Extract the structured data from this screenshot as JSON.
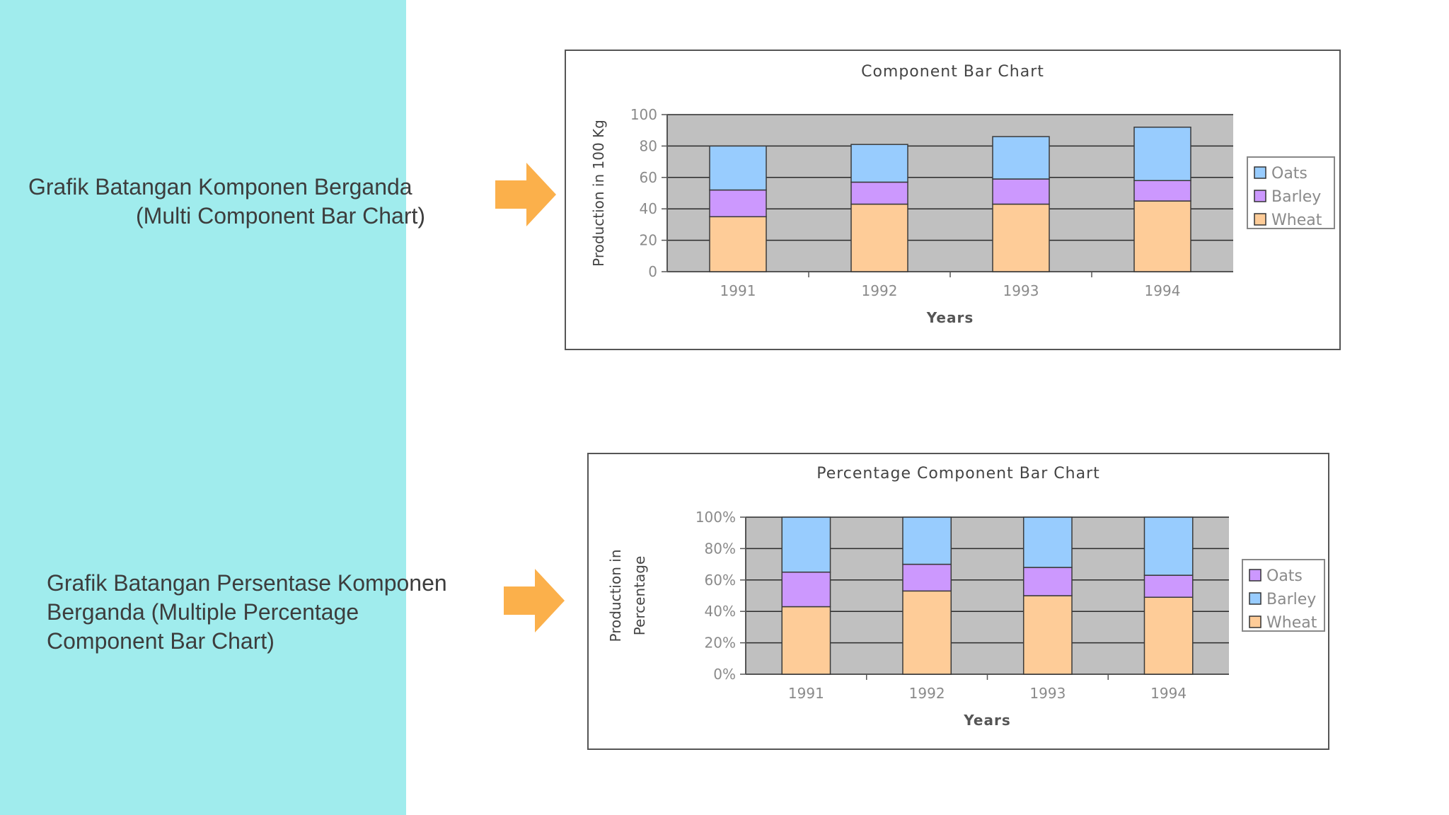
{
  "captions": {
    "multi_component": {
      "line1": "Grafik Batangan Komponen Berganda",
      "line2": "(Multi Component Bar Chart)"
    },
    "percentage_component": {
      "line1": "Grafik Batangan Persentase Komponen",
      "line2": "Berganda (Multiple Percentage",
      "line3": "Component Bar Chart)"
    }
  },
  "colors": {
    "left_panel": "#a0eced",
    "arrow": "#fbb04b",
    "plot_area": "#c0c0c0",
    "wheat": "#fecc98",
    "barley": "#cc98fe",
    "oats": "#98ccfe"
  },
  "chart_data": [
    {
      "type": "bar",
      "stacked": true,
      "title": "Component Bar Chart",
      "xlabel": "Years",
      "ylabel": "Production in 100 Kg",
      "categories": [
        "1991",
        "1992",
        "1993",
        "1994"
      ],
      "ylim": [
        0,
        100
      ],
      "yticks": [
        "0",
        "20",
        "40",
        "60",
        "80",
        "100"
      ],
      "grid": true,
      "legend_position": "right",
      "legend": [
        "Oats",
        "Barley",
        "Wheat"
      ],
      "series": [
        {
          "name": "Wheat",
          "values": [
            35,
            43,
            43,
            45
          ]
        },
        {
          "name": "Barley",
          "values": [
            17,
            14,
            16,
            13
          ]
        },
        {
          "name": "Oats",
          "values": [
            28,
            24,
            27,
            34
          ]
        }
      ]
    },
    {
      "type": "bar",
      "stacked": true,
      "title": "Percentage Component Bar Chart",
      "xlabel": "Years",
      "ylabel_lines": [
        "Production in",
        "Percentage"
      ],
      "categories": [
        "1991",
        "1992",
        "1993",
        "1994"
      ],
      "ylim": [
        0,
        100
      ],
      "yticks": [
        "0%",
        "20%",
        "40%",
        "60%",
        "80%",
        "100%"
      ],
      "grid": true,
      "legend_position": "right",
      "legend": [
        "Oats",
        "Barley",
        "Wheat"
      ],
      "series": [
        {
          "name": "Wheat",
          "values": [
            43,
            53,
            50,
            49
          ]
        },
        {
          "name": "Barley",
          "values": [
            22,
            17,
            18,
            14
          ]
        },
        {
          "name": "Oats",
          "values": [
            35,
            30,
            32,
            37
          ]
        }
      ]
    }
  ]
}
